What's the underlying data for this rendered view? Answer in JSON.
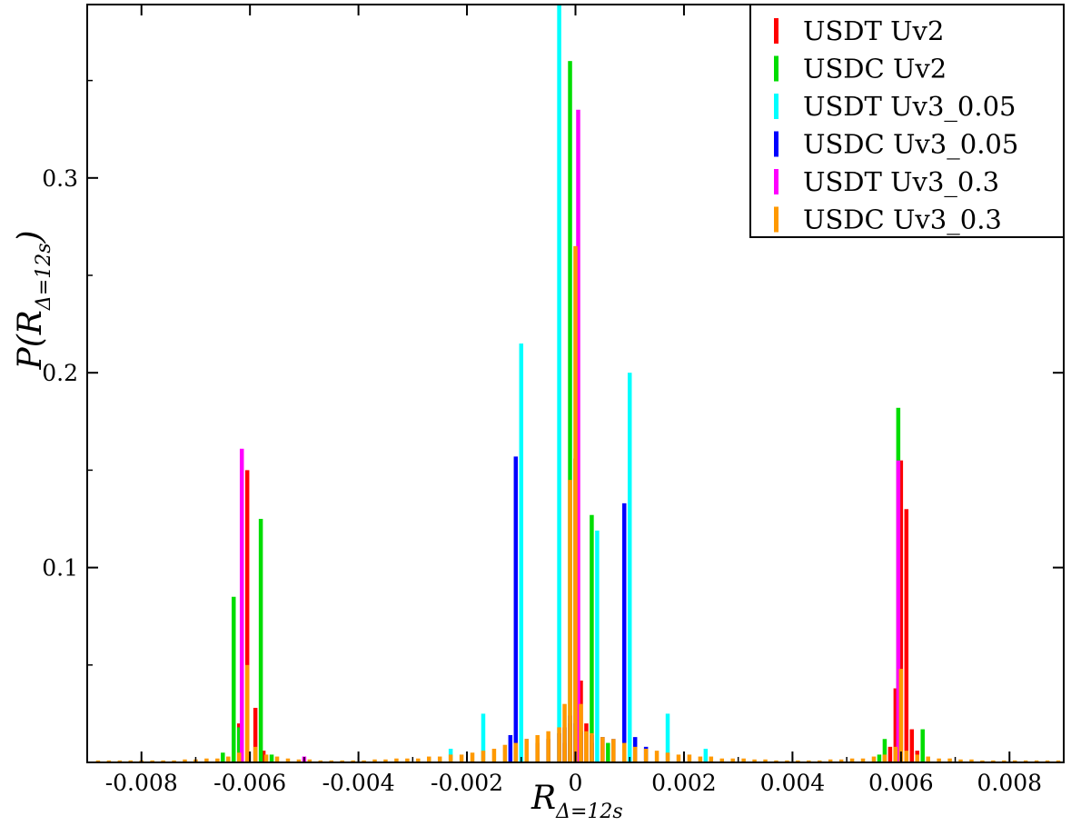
{
  "chart_data": {
    "type": "bar",
    "xlabel": {
      "main": "R",
      "sub": "Δ=12s"
    },
    "ylabel": {
      "prefix": "P(",
      "main": "R",
      "sub": "Δ=12s",
      "suffix": ")"
    },
    "xlim": [
      -0.009,
      0.009
    ],
    "ylim": [
      0,
      0.389
    ],
    "x_ticks": [
      -0.008,
      -0.006,
      -0.004,
      -0.002,
      0,
      0.002,
      0.004,
      0.006,
      0.008
    ],
    "x_tick_labels": [
      "-0.008",
      "-0.006",
      "-0.004",
      "-0.002",
      "0",
      "0.002",
      "0.004",
      "0.006",
      "0.008"
    ],
    "y_ticks": [
      0.1,
      0.2,
      0.3
    ],
    "y_tick_labels": [
      "0.1",
      "0.2",
      "0.3"
    ],
    "grid": false,
    "legend_position": "top-right",
    "series": [
      {
        "name": "USDT Uv2",
        "color": "#ff0000",
        "points": [
          [
            -0.0062,
            0.02
          ],
          [
            -0.00605,
            0.15
          ],
          [
            -0.0059,
            0.028
          ],
          [
            -0.00575,
            0.006
          ],
          [
            -0.0002,
            0.01
          ],
          [
            -0.0001,
            0.02
          ],
          [
            0.0,
            0.156
          ],
          [
            0.0001,
            0.042
          ],
          [
            0.0002,
            0.02
          ],
          [
            0.0003,
            0.01
          ],
          [
            0.0058,
            0.008
          ],
          [
            0.0059,
            0.038
          ],
          [
            0.006,
            0.155
          ],
          [
            0.0061,
            0.13
          ],
          [
            0.0062,
            0.017
          ],
          [
            0.0063,
            0.006
          ]
        ]
      },
      {
        "name": "USDC Uv2",
        "color": "#00dd00",
        "points": [
          [
            -0.0065,
            0.005
          ],
          [
            -0.0063,
            0.085
          ],
          [
            -0.0062,
            0.018
          ],
          [
            -0.0058,
            0.125
          ],
          [
            -0.0056,
            0.004
          ],
          [
            -0.0001,
            0.36
          ],
          [
            0.0003,
            0.127
          ],
          [
            0.0006,
            0.01
          ],
          [
            0.0056,
            0.004
          ],
          [
            0.0057,
            0.012
          ],
          [
            0.00595,
            0.182
          ],
          [
            0.0064,
            0.017
          ]
        ]
      },
      {
        "name": "USDT Uv3_0.05",
        "color": "#00ffff",
        "points": [
          [
            -0.0023,
            0.007
          ],
          [
            -0.0017,
            0.025
          ],
          [
            -0.001,
            0.215
          ],
          [
            -0.0003,
            0.389
          ],
          [
            0.0004,
            0.119
          ],
          [
            0.001,
            0.2
          ],
          [
            0.0017,
            0.025
          ],
          [
            0.0024,
            0.007
          ]
        ]
      },
      {
        "name": "USDC Uv3_0.05",
        "color": "#0000ff",
        "points": [
          [
            -0.0012,
            0.014
          ],
          [
            -0.0011,
            0.157
          ],
          [
            -0.0009,
            0.012
          ],
          [
            -0.0007,
            0.01
          ],
          [
            -0.0005,
            0.012
          ],
          [
            -0.0003,
            0.015
          ],
          [
            -0.0002,
            0.018
          ],
          [
            -0.0001,
            0.024
          ],
          [
            0.0,
            0.02
          ],
          [
            0.0001,
            0.016
          ],
          [
            0.0003,
            0.014
          ],
          [
            0.0005,
            0.013
          ],
          [
            0.0007,
            0.012
          ],
          [
            0.0009,
            0.133
          ],
          [
            0.0011,
            0.013
          ],
          [
            0.0013,
            0.008
          ]
        ]
      },
      {
        "name": "USDT Uv3_0.3",
        "color": "#ff00ff",
        "points": [
          [
            -0.00615,
            0.161
          ],
          [
            -0.005,
            0.003
          ],
          [
            5e-05,
            0.335
          ],
          [
            0.00595,
            0.155
          ]
        ]
      },
      {
        "name": "USDC Uv3_0.3",
        "color": "#ff9900",
        "points": [
          [
            -0.0088,
            0.001
          ],
          [
            -0.0086,
            0.001
          ],
          [
            -0.0084,
            0.001
          ],
          [
            -0.0082,
            0.001
          ],
          [
            -0.008,
            0.001
          ],
          [
            -0.0078,
            0.001
          ],
          [
            -0.0076,
            0.001
          ],
          [
            -0.0074,
            0.001
          ],
          [
            -0.0072,
            0.0015
          ],
          [
            -0.007,
            0.0015
          ],
          [
            -0.0068,
            0.002
          ],
          [
            -0.0066,
            0.002
          ],
          [
            -0.0064,
            0.003
          ],
          [
            -0.0062,
            0.005
          ],
          [
            -0.00605,
            0.05
          ],
          [
            -0.0059,
            0.008
          ],
          [
            -0.0057,
            0.004
          ],
          [
            -0.0055,
            0.003
          ],
          [
            -0.0053,
            0.002
          ],
          [
            -0.0051,
            0.0015
          ],
          [
            -0.0049,
            0.0015
          ],
          [
            -0.0047,
            0.001
          ],
          [
            -0.0045,
            0.001
          ],
          [
            -0.0043,
            0.001
          ],
          [
            -0.0041,
            0.001
          ],
          [
            -0.0039,
            0.001
          ],
          [
            -0.0037,
            0.0015
          ],
          [
            -0.0035,
            0.0015
          ],
          [
            -0.0033,
            0.002
          ],
          [
            -0.0031,
            0.002
          ],
          [
            -0.0029,
            0.002
          ],
          [
            -0.0027,
            0.003
          ],
          [
            -0.0025,
            0.003
          ],
          [
            -0.0023,
            0.004
          ],
          [
            -0.0021,
            0.004
          ],
          [
            -0.0019,
            0.005
          ],
          [
            -0.0017,
            0.006
          ],
          [
            -0.0015,
            0.007
          ],
          [
            -0.0013,
            0.009
          ],
          [
            -0.0011,
            0.01
          ],
          [
            -0.0009,
            0.012
          ],
          [
            -0.0007,
            0.014
          ],
          [
            -0.0005,
            0.016
          ],
          [
            -0.0003,
            0.018
          ],
          [
            -0.0002,
            0.03
          ],
          [
            -0.0001,
            0.145
          ],
          [
            0.0,
            0.265
          ],
          [
            0.0001,
            0.03
          ],
          [
            0.0002,
            0.016
          ],
          [
            0.0003,
            0.015
          ],
          [
            0.0005,
            0.013
          ],
          [
            0.0007,
            0.012
          ],
          [
            0.0009,
            0.01
          ],
          [
            0.0011,
            0.008
          ],
          [
            0.0013,
            0.007
          ],
          [
            0.0015,
            0.006
          ],
          [
            0.0017,
            0.005
          ],
          [
            0.0019,
            0.004
          ],
          [
            0.0021,
            0.004
          ],
          [
            0.0023,
            0.003
          ],
          [
            0.0025,
            0.003
          ],
          [
            0.0027,
            0.002
          ],
          [
            0.0029,
            0.002
          ],
          [
            0.0031,
            0.002
          ],
          [
            0.0033,
            0.0015
          ],
          [
            0.0035,
            0.0015
          ],
          [
            0.0037,
            0.001
          ],
          [
            0.0039,
            0.001
          ],
          [
            0.0041,
            0.001
          ],
          [
            0.0043,
            0.001
          ],
          [
            0.0045,
            0.001
          ],
          [
            0.0047,
            0.0015
          ],
          [
            0.0049,
            0.0015
          ],
          [
            0.0051,
            0.002
          ],
          [
            0.0053,
            0.002
          ],
          [
            0.0055,
            0.003
          ],
          [
            0.0057,
            0.004
          ],
          [
            0.0059,
            0.008
          ],
          [
            0.006,
            0.048
          ],
          [
            0.0061,
            0.006
          ],
          [
            0.0063,
            0.004
          ],
          [
            0.0065,
            0.003
          ],
          [
            0.0067,
            0.002
          ],
          [
            0.0069,
            0.002
          ],
          [
            0.0071,
            0.0015
          ],
          [
            0.0073,
            0.0015
          ],
          [
            0.0075,
            0.001
          ],
          [
            0.0077,
            0.001
          ],
          [
            0.0079,
            0.001
          ],
          [
            0.0081,
            0.001
          ],
          [
            0.0083,
            0.001
          ],
          [
            0.0085,
            0.001
          ],
          [
            0.0087,
            0.001
          ],
          [
            0.0089,
            0.001
          ]
        ]
      }
    ]
  }
}
